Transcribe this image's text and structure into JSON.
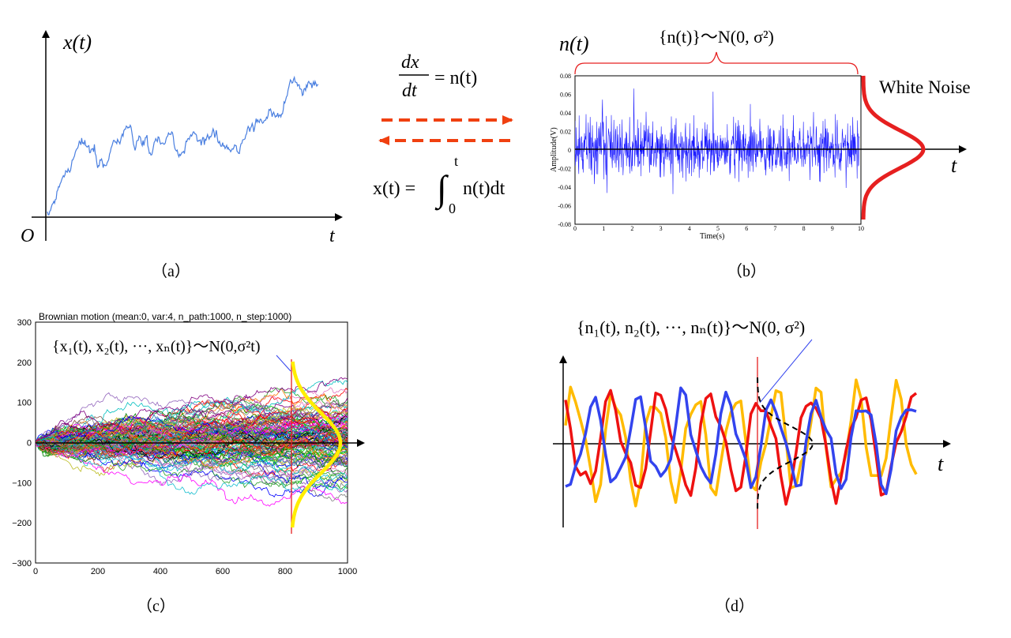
{
  "colors": {
    "brownian": "#4a7fe0",
    "noise": "#1a1aff",
    "accent_red": "#e62020",
    "arrow": "#f04010",
    "gauss_yellow": "#ffee00",
    "d_yellow": "#ffbb00",
    "d_red": "#ee1111",
    "d_blue": "#3344ee"
  },
  "panel_a": {
    "y_label": "x(t)",
    "origin_label": "O",
    "x_label": "t",
    "caption": "（a）"
  },
  "middle": {
    "eq_top_num": "dx",
    "eq_top_den": "dt",
    "eq_top_rhs": "= n(t)",
    "eq_bottom_lhs": "x(t) =",
    "eq_bottom_upper": "t",
    "eq_bottom_lower": "0",
    "eq_bottom_body": "n(t)dt"
  },
  "panel_b": {
    "y_label": "n(t)",
    "brace_label": "{n(t)}～N(0,  σ²)",
    "legend": "White Noise",
    "x_axis_label": "t",
    "amp_label": "Amplitude(V)",
    "time_label": "Time(s)",
    "y_ticks": [
      "0.08",
      "0.06",
      "0.04",
      "0.02",
      "0",
      "-0.02",
      "-0.04",
      "-0.06",
      "-0.08"
    ],
    "x_ticks": [
      "0",
      "1",
      "2",
      "3",
      "4",
      "5",
      "6",
      "7",
      "8",
      "9",
      "10"
    ],
    "caption": "（b）"
  },
  "panel_c": {
    "title": "Brownian motion (mean:0, var:4, n_path:1000, n_step:1000)",
    "annotation": "{x₁(t),  x₂(t),  ···,  xₙ(t)}～N(0,σ²t)",
    "y_ticks": [
      "300",
      "200",
      "100",
      "0",
      "−100",
      "−200",
      "−300"
    ],
    "x_ticks": [
      "0",
      "200",
      "400",
      "600",
      "800",
      "1000"
    ],
    "caption": "（c）"
  },
  "panel_d": {
    "annotation": "{n₁(t),  n₂(t),  ···,  nₙ(t)}～N(0,  σ²)",
    "x_label": "t",
    "caption": "（d）"
  }
}
